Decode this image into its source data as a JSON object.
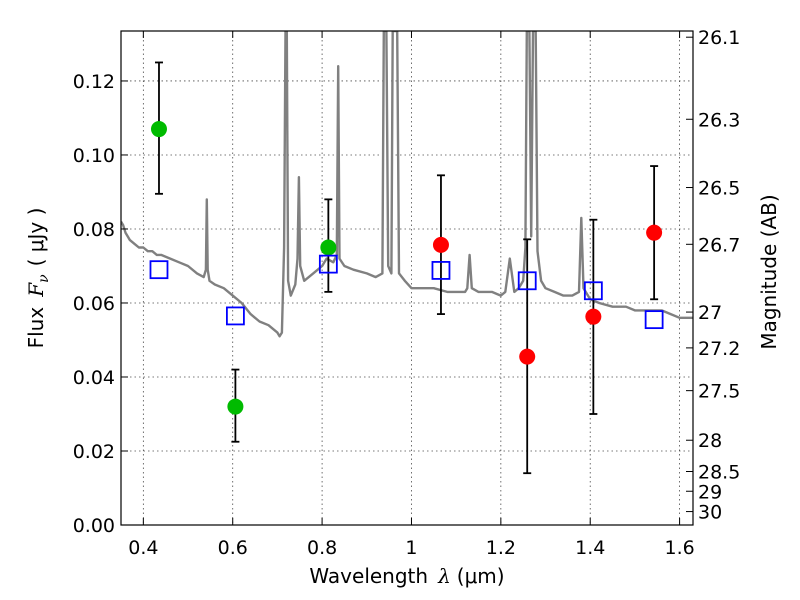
{
  "chart_data": {
    "type": "scatter",
    "xlabel_prefix": "Wavelength",
    "xlabel_symbol": "λ",
    "xlabel_unit": "(μm)",
    "ylabel_prefix": "Flux",
    "ylabel_symbol": "F",
    "ylabel_sub": "ν",
    "ylabel_unit": "( μJy )",
    "y2label": "Magnitude (AB)",
    "xlim": [
      0.35,
      1.63
    ],
    "ylim": [
      0.0,
      0.1335
    ],
    "xticks": [
      0.4,
      0.6,
      0.8,
      1.0,
      1.2,
      1.4,
      1.6
    ],
    "xtick_labels": [
      "0.4",
      "0.6",
      "0.8",
      "1",
      "1.2",
      "1.4",
      "1.6"
    ],
    "yticks": [
      0.0,
      0.02,
      0.04,
      0.06,
      0.08,
      0.1,
      0.12
    ],
    "ytick_labels": [
      "0.00",
      "0.02",
      "0.04",
      "0.06",
      "0.08",
      "0.10",
      "0.12"
    ],
    "mag_ticks": [
      26.1,
      26.3,
      26.5,
      26.7,
      27.0,
      27.2,
      27.5,
      28.0,
      28.5,
      29.0,
      30.0
    ],
    "mag_tick_labels": [
      "26.1",
      "26.3",
      "26.5",
      "26.7",
      "27",
      "27.2",
      "27.5",
      "28",
      "28.5",
      "29",
      "30"
    ],
    "grid": true,
    "colors": {
      "spectrum": "#808080",
      "green": "#00bb00",
      "red": "#ff0000",
      "model": "#0000ff",
      "errorbar": "#000000"
    },
    "series": [
      {
        "name": "spectrum",
        "kind": "line",
        "points": [
          [
            0.35,
            0.082
          ],
          [
            0.355,
            0.081
          ],
          [
            0.36,
            0.079
          ],
          [
            0.365,
            0.078
          ],
          [
            0.37,
            0.077
          ],
          [
            0.38,
            0.076
          ],
          [
            0.39,
            0.075
          ],
          [
            0.4,
            0.075
          ],
          [
            0.41,
            0.074
          ],
          [
            0.42,
            0.074
          ],
          [
            0.43,
            0.073
          ],
          [
            0.44,
            0.073
          ],
          [
            0.46,
            0.072
          ],
          [
            0.48,
            0.071
          ],
          [
            0.5,
            0.07
          ],
          [
            0.52,
            0.068
          ],
          [
            0.535,
            0.067
          ],
          [
            0.54,
            0.069
          ],
          [
            0.542,
            0.088
          ],
          [
            0.544,
            0.069
          ],
          [
            0.548,
            0.066
          ],
          [
            0.56,
            0.065
          ],
          [
            0.58,
            0.064
          ],
          [
            0.6,
            0.062
          ],
          [
            0.62,
            0.06
          ],
          [
            0.64,
            0.057
          ],
          [
            0.66,
            0.055
          ],
          [
            0.68,
            0.054
          ],
          [
            0.7,
            0.052
          ],
          [
            0.705,
            0.051
          ],
          [
            0.71,
            0.052
          ],
          [
            0.715,
            0.075
          ],
          [
            0.718,
            0.1335
          ],
          [
            0.721,
            0.1335
          ],
          [
            0.724,
            0.066
          ],
          [
            0.73,
            0.062
          ],
          [
            0.74,
            0.065
          ],
          [
            0.745,
            0.072
          ],
          [
            0.748,
            0.094
          ],
          [
            0.751,
            0.07
          ],
          [
            0.76,
            0.066
          ],
          [
            0.78,
            0.068
          ],
          [
            0.8,
            0.07
          ],
          [
            0.81,
            0.072
          ],
          [
            0.825,
            0.071
          ],
          [
            0.833,
            0.073
          ],
          [
            0.836,
            0.124
          ],
          [
            0.839,
            0.072
          ],
          [
            0.85,
            0.07
          ],
          [
            0.87,
            0.069
          ],
          [
            0.9,
            0.068
          ],
          [
            0.92,
            0.067
          ],
          [
            0.935,
            0.068
          ],
          [
            0.938,
            0.1335
          ],
          [
            0.944,
            0.1335
          ],
          [
            0.948,
            0.07
          ],
          [
            0.955,
            0.068
          ],
          [
            0.958,
            0.1335
          ],
          [
            0.964,
            0.1335
          ],
          [
            0.968,
            0.1335
          ],
          [
            0.972,
            0.068
          ],
          [
            0.985,
            0.066
          ],
          [
            1.0,
            0.064
          ],
          [
            1.02,
            0.064
          ],
          [
            1.05,
            0.064
          ],
          [
            1.08,
            0.063
          ],
          [
            1.1,
            0.063
          ],
          [
            1.12,
            0.063
          ],
          [
            1.125,
            0.064
          ],
          [
            1.13,
            0.073
          ],
          [
            1.135,
            0.064
          ],
          [
            1.15,
            0.063
          ],
          [
            1.18,
            0.063
          ],
          [
            1.2,
            0.062
          ],
          [
            1.21,
            0.063
          ],
          [
            1.22,
            0.072
          ],
          [
            1.23,
            0.063
          ],
          [
            1.24,
            0.064
          ],
          [
            1.25,
            0.066
          ],
          [
            1.255,
            0.075
          ],
          [
            1.258,
            0.1335
          ],
          [
            1.264,
            0.1335
          ],
          [
            1.268,
            0.078
          ],
          [
            1.272,
            0.1335
          ],
          [
            1.278,
            0.1335
          ],
          [
            1.282,
            0.074
          ],
          [
            1.29,
            0.066
          ],
          [
            1.3,
            0.064
          ],
          [
            1.32,
            0.063
          ],
          [
            1.34,
            0.062
          ],
          [
            1.36,
            0.062
          ],
          [
            1.375,
            0.063
          ],
          [
            1.38,
            0.083
          ],
          [
            1.385,
            0.064
          ],
          [
            1.4,
            0.061
          ],
          [
            1.42,
            0.06
          ],
          [
            1.45,
            0.059
          ],
          [
            1.48,
            0.059
          ],
          [
            1.5,
            0.058
          ],
          [
            1.53,
            0.058
          ],
          [
            1.56,
            0.058
          ],
          [
            1.58,
            0.057
          ],
          [
            1.6,
            0.056
          ],
          [
            1.63,
            0.056
          ]
        ]
      },
      {
        "name": "green-photometry",
        "kind": "points",
        "points": [
          {
            "x": 0.435,
            "y": 0.107,
            "err_lo": 0.0895,
            "err_hi": 0.125
          },
          {
            "x": 0.606,
            "y": 0.032,
            "err_lo": 0.0225,
            "err_hi": 0.042
          },
          {
            "x": 0.814,
            "y": 0.075,
            "err_lo": 0.063,
            "err_hi": 0.088
          }
        ]
      },
      {
        "name": "red-photometry",
        "kind": "points",
        "points": [
          {
            "x": 1.066,
            "y": 0.0757,
            "err_lo": 0.057,
            "err_hi": 0.0945
          },
          {
            "x": 1.259,
            "y": 0.0455,
            "err_lo": 0.014,
            "err_hi": 0.0772
          },
          {
            "x": 1.407,
            "y": 0.0563,
            "err_lo": 0.03,
            "err_hi": 0.0825
          },
          {
            "x": 1.543,
            "y": 0.079,
            "err_lo": 0.061,
            "err_hi": 0.097
          }
        ]
      },
      {
        "name": "model-photometry",
        "kind": "squares",
        "points": [
          {
            "x": 0.435,
            "y": 0.069
          },
          {
            "x": 0.606,
            "y": 0.0565
          },
          {
            "x": 0.814,
            "y": 0.0705
          },
          {
            "x": 1.066,
            "y": 0.0688
          },
          {
            "x": 1.259,
            "y": 0.066
          },
          {
            "x": 1.407,
            "y": 0.0633
          },
          {
            "x": 1.543,
            "y": 0.0555
          }
        ]
      }
    ]
  }
}
